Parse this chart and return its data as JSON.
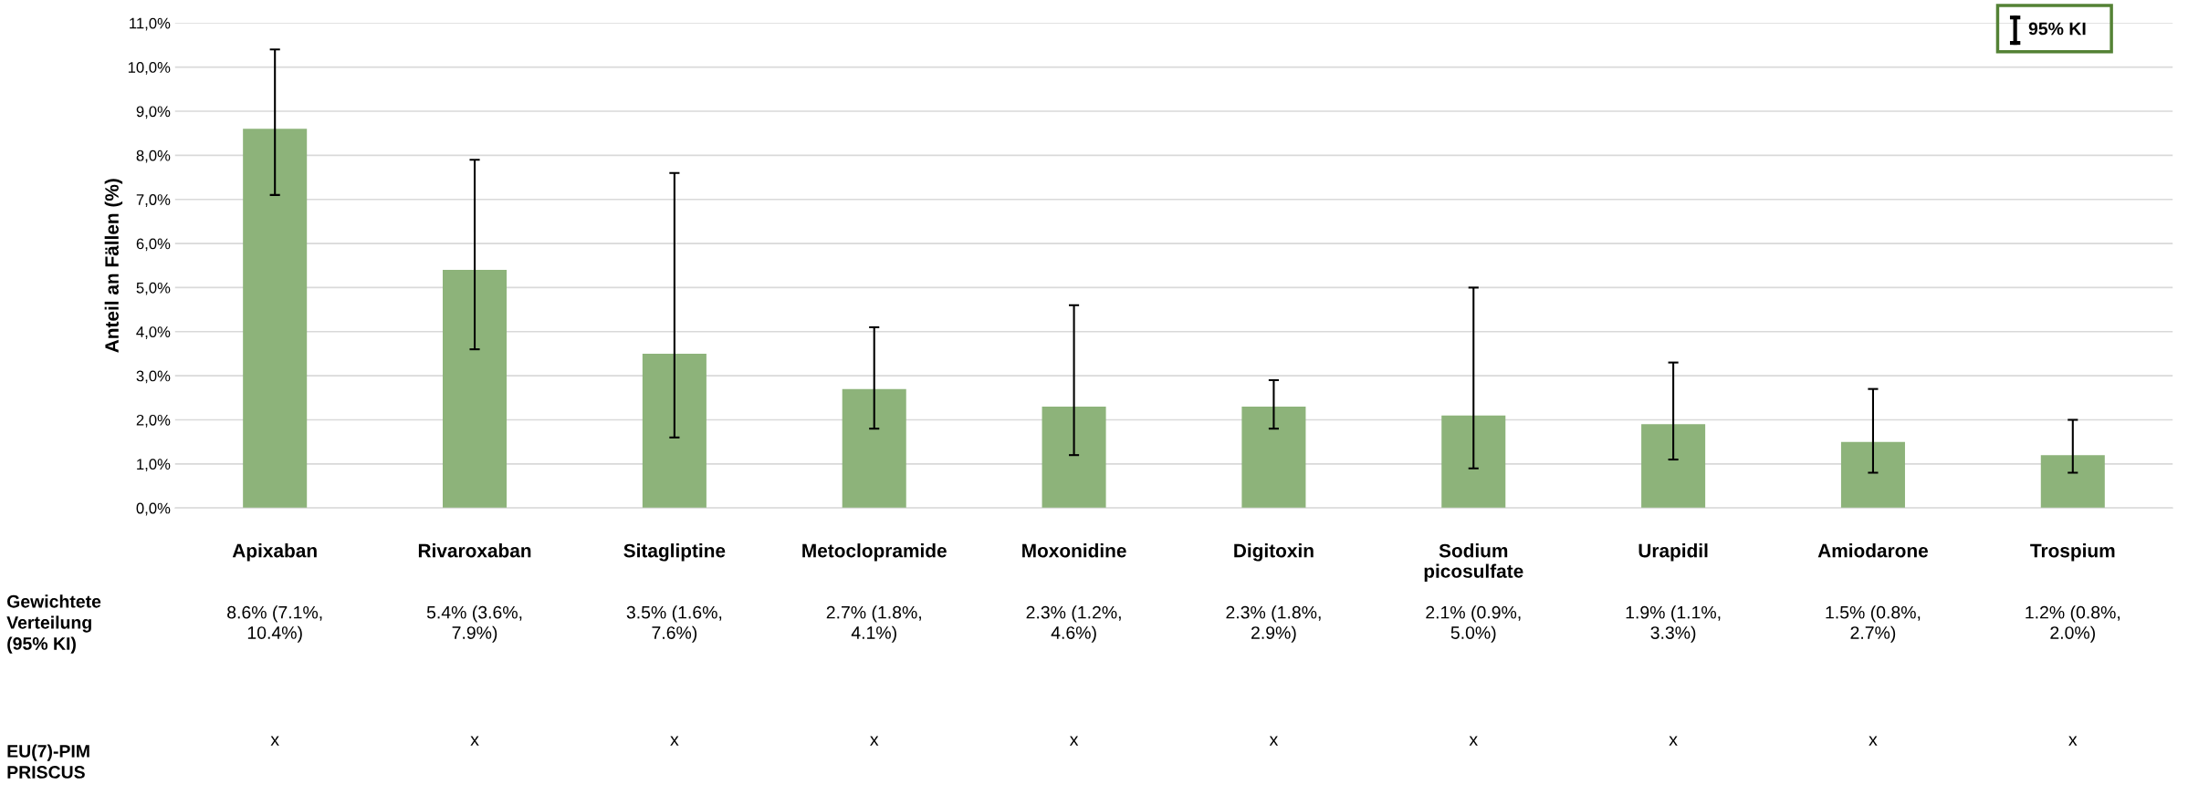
{
  "chart_data": {
    "type": "bar",
    "ylabel": "Anteil an Fällen (%)",
    "categories": [
      "Apixaban",
      "Rivaroxaban",
      "Sitagliptine",
      "Metoclopramide",
      "Moxonidine",
      "Digitoxin",
      "Sodium picosulfate",
      "Urapidil",
      "Amiodarone",
      "Trospium"
    ],
    "values": [
      8.6,
      5.4,
      3.5,
      2.7,
      2.3,
      2.3,
      2.1,
      1.9,
      1.5,
      1.2
    ],
    "errors": [
      [
        7.1,
        10.4
      ],
      [
        3.6,
        7.9
      ],
      [
        1.6,
        7.6
      ],
      [
        1.8,
        4.1
      ],
      [
        1.2,
        4.6
      ],
      [
        1.8,
        2.9
      ],
      [
        0.9,
        5.0
      ],
      [
        1.1,
        3.3
      ],
      [
        0.8,
        2.7
      ],
      [
        0.8,
        2.0
      ]
    ],
    "value_labels": [
      "8.6% (7.1%, 10.4%)",
      "5.4% (3.6%, 7.9%)",
      "3.5% (1.6%, 7.6%)",
      "2.7% (1.8%, 4.1%)",
      "2.3% (1.2%, 4.6%)",
      "2.3% (1.8%, 2.9%)",
      "2.1% (0.9%, 5.0%)",
      "1.9% (1.1%, 3.3%)",
      "1.5% (0.8%, 2.7%)",
      "1.2% (0.8%, 2.0%)"
    ],
    "color": "#8db37a",
    "ylim": [
      0,
      11
    ],
    "yticks": [
      {
        "value": 0,
        "label": "0,0%"
      },
      {
        "value": 1,
        "label": "1,0%"
      },
      {
        "value": 2,
        "label": "2,0%"
      },
      {
        "value": 3,
        "label": "3,0%"
      },
      {
        "value": 4,
        "label": "4,0%"
      },
      {
        "value": 5,
        "label": "5,0%"
      },
      {
        "value": 6,
        "label": "6,0%"
      },
      {
        "value": 7,
        "label": "7,0%"
      },
      {
        "value": 8,
        "label": "8,0%"
      },
      {
        "value": 9,
        "label": "9,0%"
      },
      {
        "value": 10,
        "label": "10,0%"
      },
      {
        "value": 11,
        "label": "11,0%"
      }
    ],
    "grid": "y",
    "annotations": [
      "95% KI",
      "Gewichtete Verteilung (95% KI)",
      "EU(7)-PIM PRISCUS",
      "x",
      "x",
      "x",
      "x",
      "x",
      "x",
      "x",
      "x",
      "x",
      "x"
    ]
  }
}
